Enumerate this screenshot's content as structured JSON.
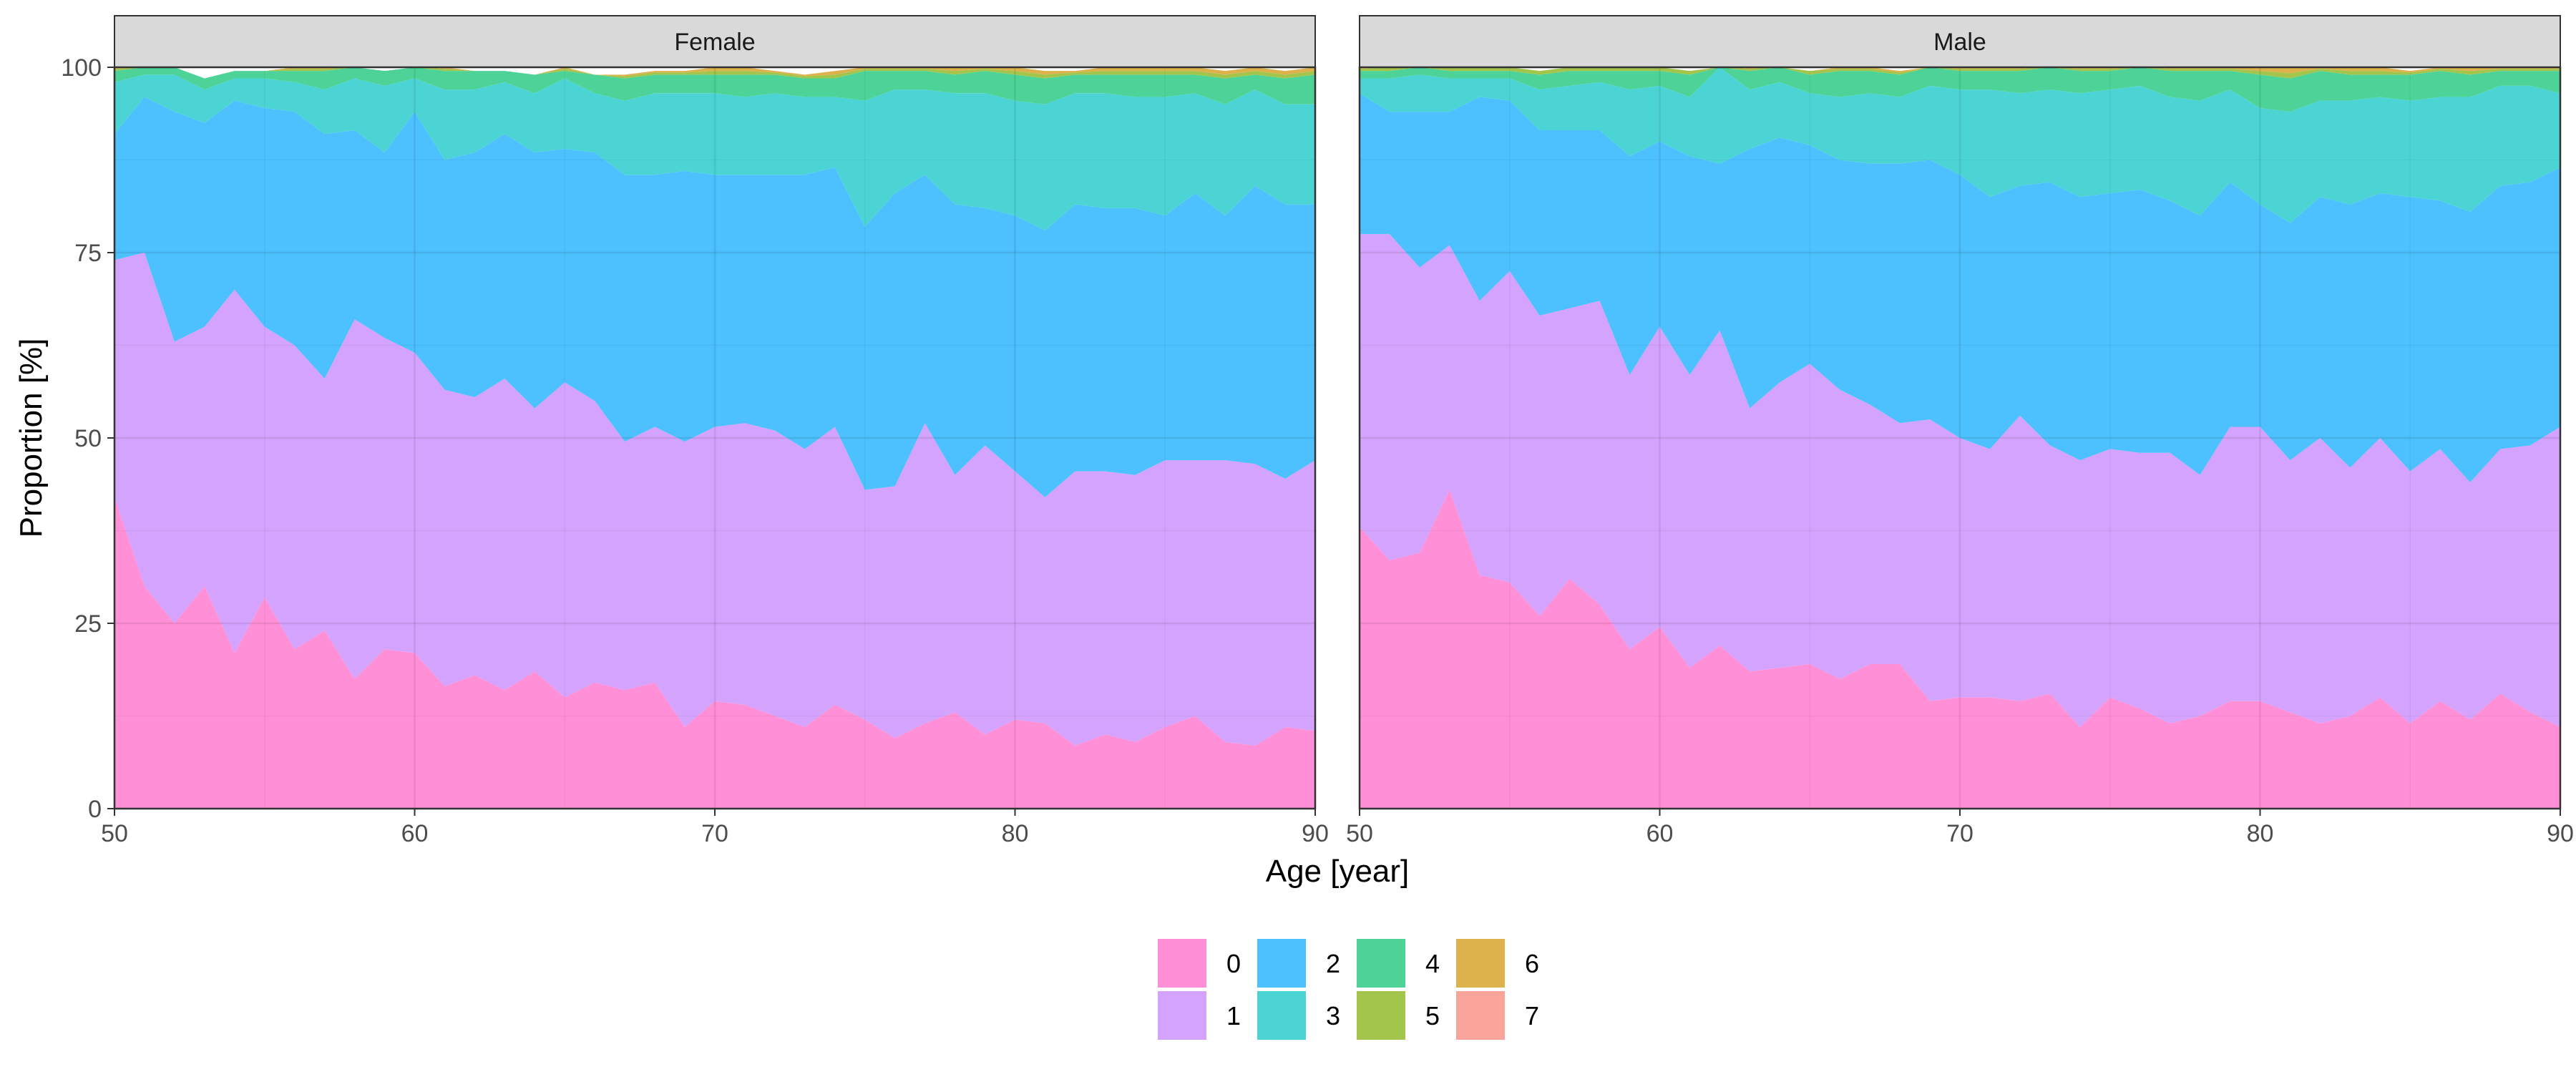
{
  "chart_data": {
    "type": "area",
    "stacked": true,
    "xlabel": "Age [year]",
    "ylabel": "Proportion [%]",
    "xlim": [
      50,
      90
    ],
    "ylim": [
      0,
      100
    ],
    "xticks": [
      50,
      60,
      70,
      80,
      90
    ],
    "yticks": [
      0,
      25,
      50,
      75,
      100
    ],
    "grid": true,
    "legend_position": "bottom",
    "legend_title": "",
    "series_colors": {
      "0": "#FF8FD7",
      "1": "#D4A3FD",
      "2": "#4CC1FD",
      "3": "#4CD4D4",
      "4": "#4DD397",
      "5": "#A3C54C",
      "6": "#DDB14C",
      "7": "#F8A49A"
    },
    "legend": [
      "0",
      "1",
      "2",
      "3",
      "4",
      "5",
      "6",
      "7"
    ],
    "x": [
      50,
      51,
      52,
      53,
      54,
      55,
      56,
      57,
      58,
      59,
      60,
      61,
      62,
      63,
      64,
      65,
      66,
      67,
      68,
      69,
      70,
      71,
      72,
      73,
      74,
      75,
      76,
      77,
      78,
      79,
      80,
      81,
      82,
      83,
      84,
      85,
      86,
      87,
      88,
      89,
      90
    ],
    "panels": [
      {
        "label": "Female",
        "series": [
          {
            "name": "0",
            "values": [
              42,
              30,
              25,
              30,
              21,
              28.5,
              21.5,
              24,
              17.5,
              21.5,
              21,
              16.5,
              18,
              16,
              18.5,
              15,
              17,
              16,
              17,
              11,
              14.5,
              14,
              12.5,
              11,
              14,
              12,
              9.5,
              11.5,
              13,
              10,
              12,
              11.5,
              8.5,
              10,
              9,
              11,
              12.5,
              9,
              8.5,
              11,
              10.5
            ]
          },
          {
            "name": "1",
            "values": [
              32,
              45,
              38,
              35,
              49,
              36.5,
              41,
              34,
              48.5,
              42,
              40.5,
              40,
              37.5,
              42,
              35.5,
              42.5,
              38,
              33.5,
              34.5,
              38.5,
              37,
              38,
              38.5,
              37.5,
              37.5,
              31,
              34,
              40.5,
              32,
              39,
              33.5,
              30.5,
              37,
              35.5,
              36,
              36,
              34.5,
              38,
              38,
              33.5,
              36.5
            ]
          },
          {
            "name": "2",
            "values": [
              17,
              21,
              31,
              27.5,
              25.5,
              29.5,
              31.5,
              33,
              25.5,
              25,
              32.5,
              31,
              33,
              33,
              34.5,
              31.5,
              33.5,
              36,
              34,
              36.5,
              34,
              33.5,
              34.5,
              37,
              35,
              35.5,
              39.5,
              33.5,
              36.5,
              32,
              34.5,
              36,
              36,
              35.5,
              36,
              33,
              36,
              33,
              37.5,
              37,
              34.5
            ]
          },
          {
            "name": "3",
            "values": [
              7,
              3,
              5,
              4.5,
              3,
              4,
              4,
              6,
              7,
              9,
              4.5,
              9.5,
              8.5,
              7,
              8,
              9.5,
              8,
              10,
              11,
              10.5,
              11,
              10.5,
              11,
              10.5,
              9.5,
              17,
              14,
              11.5,
              15,
              15.5,
              15.5,
              17,
              15,
              15.5,
              15,
              16,
              13.5,
              15,
              13,
              13.5,
              13.5
            ]
          },
          {
            "name": "4",
            "values": [
              1.5,
              1,
              1,
              1.5,
              1,
              1,
              1.5,
              2.5,
              1.5,
              2,
              1.5,
              2.5,
              2.5,
              1.5,
              2.5,
              1,
              2.5,
              3,
              2.5,
              2.5,
              2.5,
              3,
              2.5,
              2.5,
              2.5,
              4,
              2.5,
              2.5,
              2.5,
              3,
              3.5,
              3.5,
              2.5,
              2.5,
              3,
              3,
              2.5,
              3.5,
              2,
              3.5,
              4
            ]
          },
          {
            "name": "5",
            "values": [
              0.3,
              0,
              0,
              0,
              0,
              0,
              0.3,
              0.3,
              0,
              0,
              0.3,
              0.3,
              0,
              0,
              0,
              0.3,
              0,
              0.3,
              0.3,
              0.3,
              0.5,
              0.5,
              0.3,
              0.3,
              0.5,
              0.3,
              0.3,
              0.3,
              0.5,
              0.3,
              0.5,
              0.5,
              0.3,
              0.5,
              0.5,
              0.5,
              0.5,
              0.5,
              0.5,
              0.5,
              0.5
            ]
          },
          {
            "name": "6",
            "values": [
              0.2,
              0,
              0,
              0,
              0,
              0,
              0.2,
              0.2,
              0,
              0,
              0.2,
              0.2,
              0,
              0,
              0,
              0.2,
              0,
              0.2,
              0.2,
              0.2,
              0.5,
              0.5,
              0.2,
              0.2,
              0.5,
              0.2,
              0.2,
              0.2,
              0.5,
              0.2,
              0.5,
              0.5,
              0.2,
              0.5,
              0.5,
              0.5,
              0.5,
              0.5,
              0.5,
              0.5,
              0.5
            ]
          },
          {
            "name": "7",
            "values": [
              0,
              0,
              0,
              0,
              0,
              0,
              0,
              0,
              0,
              0,
              0,
              0,
              0,
              0,
              0,
              0,
              0,
              0,
              0,
              0,
              0,
              0,
              0,
              0,
              0,
              0,
              0,
              0,
              0,
              0,
              0,
              0,
              0,
              0,
              0,
              0,
              0,
              0,
              0,
              0,
              0
            ]
          }
        ]
      },
      {
        "label": "Male",
        "series": [
          {
            "name": "0",
            "values": [
              38,
              33.5,
              34.5,
              43,
              31.5,
              30.5,
              26,
              31,
              27.5,
              21.5,
              24.5,
              19,
              22,
              18.5,
              19,
              19.5,
              17.5,
              19.5,
              19.5,
              14.5,
              15,
              15,
              14.5,
              15.5,
              11,
              15,
              13.5,
              11.5,
              12.5,
              14.5,
              14.5,
              13,
              11.5,
              12.5,
              15,
              11.5,
              14.5,
              12,
              15.5,
              13,
              11
            ]
          },
          {
            "name": "1",
            "values": [
              39.5,
              44,
              38.5,
              33,
              37,
              42,
              40.5,
              36.5,
              41,
              37,
              40.5,
              39.5,
              42.5,
              35.5,
              38.5,
              40.5,
              39,
              35,
              32.5,
              38,
              35,
              33.5,
              38.5,
              33.5,
              36,
              33.5,
              34.5,
              36.5,
              32.5,
              37,
              37,
              34,
              38.5,
              33.5,
              35,
              34,
              34,
              32,
              33,
              36,
              40.5
            ]
          },
          {
            "name": "2",
            "values": [
              19,
              16.5,
              21,
              18,
              27.5,
              23,
              25,
              24,
              23,
              29.5,
              25,
              29.5,
              22.5,
              35,
              33,
              29.5,
              31,
              32.5,
              35,
              35,
              35.5,
              34,
              31,
              35.5,
              35.5,
              34.5,
              35.5,
              34,
              35,
              33,
              30,
              32,
              32.5,
              35.5,
              33,
              37,
              33.5,
              36.5,
              35.5,
              35.5,
              35
            ]
          },
          {
            "name": "3",
            "values": [
              2,
              4.5,
              5,
              4.5,
              2.5,
              3,
              5.5,
              6,
              6.5,
              9,
              7.5,
              8,
              14,
              8,
              7.5,
              7,
              8.5,
              9.5,
              9,
              10,
              11.5,
              14.5,
              12.5,
              12.5,
              14,
              14,
              14,
              14,
              15.5,
              12.5,
              13,
              15,
              13,
              14,
              13,
              13,
              14,
              15.5,
              13.5,
              13,
              10
            ]
          },
          {
            "name": "4",
            "values": [
              1,
              1,
              1,
              1,
              1,
              1,
              2,
              2,
              1.5,
              2.5,
              2,
              3,
              2.5,
              2.5,
              2,
              2.5,
              3.5,
              3,
              3,
              2.5,
              2.5,
              2.5,
              3,
              3,
              3,
              2.5,
              2.5,
              3.5,
              4,
              2.5,
              4.5,
              4.5,
              4,
              3.5,
              3,
              3.5,
              3.5,
              3,
              2,
              2,
              3
            ]
          },
          {
            "name": "5",
            "values": [
              0.3,
              0.5,
              0,
              0.5,
              0.5,
              0.5,
              0.5,
              0.5,
              0.5,
              0.5,
              0.5,
              0.5,
              0.3,
              0.3,
              0.3,
              0.5,
              0.3,
              0.3,
              0.3,
              0.3,
              0.3,
              0.3,
              0.3,
              0.5,
              0.3,
              0.3,
              0.3,
              0.3,
              0.3,
              0.3,
              0.5,
              0.7,
              0.3,
              0.5,
              0.5,
              0.3,
              0.3,
              0.5,
              0.3,
              0.3,
              0.3
            ]
          },
          {
            "name": "6",
            "values": [
              0.2,
              0,
              0,
              0,
              0,
              0,
              0,
              0,
              0,
              0,
              0,
              0,
              0.2,
              0.2,
              0.2,
              0,
              0.2,
              0.2,
              0.2,
              0.2,
              0.2,
              0.2,
              0.2,
              0,
              0.2,
              0.2,
              0.2,
              0.2,
              0.2,
              0.2,
              0.5,
              0.8,
              0.2,
              0.5,
              0.5,
              0.2,
              0.2,
              0.5,
              0.2,
              0.2,
              0.2
            ]
          },
          {
            "name": "7",
            "values": [
              0,
              0,
              0,
              0,
              0,
              0,
              0,
              0,
              0,
              0,
              0,
              0,
              0,
              0,
              0,
              0,
              0,
              0,
              0,
              0,
              0,
              0,
              0,
              0,
              0,
              0,
              0,
              0,
              0,
              0,
              0,
              0,
              0,
              0,
              0,
              0,
              0,
              0,
              0,
              0,
              0
            ]
          }
        ]
      }
    ]
  }
}
